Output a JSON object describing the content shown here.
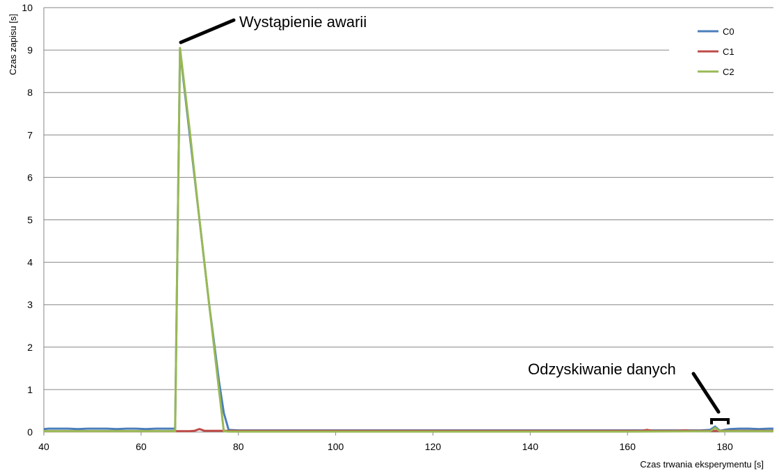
{
  "chart_data": {
    "type": "line",
    "xlabel": "Czas trwania eksperymentu [s]",
    "ylabel": "Czas zapisu [s]",
    "xlim": [
      40,
      190
    ],
    "ylim": [
      0,
      10
    ],
    "xticks": [
      40,
      60,
      80,
      100,
      120,
      140,
      160,
      180
    ],
    "yticks": [
      0,
      1,
      2,
      3,
      4,
      5,
      6,
      7,
      8,
      9,
      10
    ],
    "grid": "horizontal",
    "legend_position": "top-right",
    "series": [
      {
        "name": "C0",
        "color": "#4a7ebb",
        "x": [
          40,
          41,
          43,
          45,
          47,
          49,
          51,
          53,
          55,
          57,
          59,
          61,
          63,
          65,
          67,
          68,
          70,
          72,
          74,
          76,
          77,
          78,
          80,
          100,
          120,
          140,
          160,
          175,
          177,
          178,
          179,
          180,
          181,
          183,
          185,
          187,
          189,
          190
        ],
        "y": [
          0.07,
          0.08,
          0.08,
          0.08,
          0.07,
          0.08,
          0.08,
          0.08,
          0.07,
          0.08,
          0.08,
          0.07,
          0.08,
          0.08,
          0.08,
          9.0,
          7.0,
          5.0,
          3.0,
          1.2,
          0.45,
          0.05,
          0.04,
          0.04,
          0.04,
          0.04,
          0.04,
          0.04,
          0.05,
          0.13,
          0.03,
          0.05,
          0.07,
          0.08,
          0.08,
          0.07,
          0.08,
          0.08
        ]
      },
      {
        "name": "C1",
        "color": "#be4b48",
        "x": [
          40,
          50,
          60,
          66,
          67,
          70,
          71,
          72,
          73,
          75,
          80,
          100,
          120,
          140,
          160,
          163,
          164,
          165,
          170,
          172,
          173,
          178,
          179,
          180,
          185,
          190
        ],
        "y": [
          0.02,
          0.02,
          0.02,
          0.02,
          0.02,
          0.02,
          0.03,
          0.07,
          0.03,
          0.03,
          0.03,
          0.03,
          0.03,
          0.03,
          0.03,
          0.03,
          0.05,
          0.03,
          0.03,
          0.04,
          0.03,
          0.03,
          0.03,
          0.03,
          0.03,
          0.03
        ]
      },
      {
        "name": "C2",
        "color": "#98b954",
        "x": [
          40,
          50,
          60,
          66,
          67,
          68,
          70,
          72,
          74,
          76,
          77,
          78,
          80,
          100,
          120,
          140,
          160,
          177,
          178,
          179,
          180,
          185,
          190
        ],
        "y": [
          0.02,
          0.02,
          0.02,
          0.02,
          0.02,
          9.05,
          7.1,
          5.0,
          3.0,
          1.0,
          0.02,
          0.01,
          0.01,
          0.01,
          0.01,
          0.01,
          0.01,
          0.02,
          0.1,
          0.02,
          0.02,
          0.02,
          0.02
        ]
      }
    ],
    "annotations": [
      {
        "text": "Wystąpienie awarii",
        "x": 68,
        "y": 9.05
      },
      {
        "text": "Odzyskiwanie danych",
        "x": 179.5,
        "y": 0.2
      }
    ]
  }
}
